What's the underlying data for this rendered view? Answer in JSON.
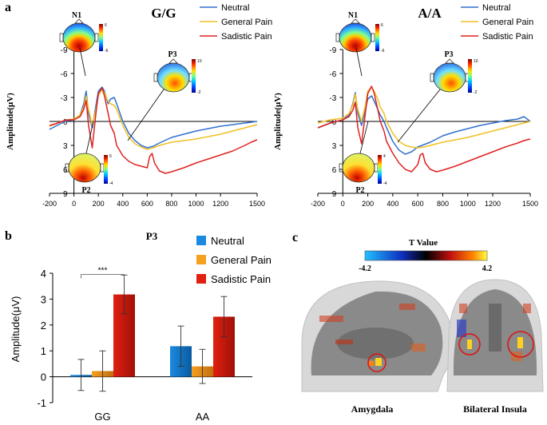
{
  "panels": {
    "a": "a",
    "b": "b",
    "c": "c"
  },
  "legend_a": {
    "neutral": "Neutral",
    "general": "General Pain",
    "sadistic": "Sadistic Pain"
  },
  "legend_b": {
    "neutral": "Neutral",
    "general": "General Pain",
    "sadistic": "Sadistic Pain"
  },
  "colors": {
    "neutral_line": "#3070d0",
    "general_line": "#f0c020",
    "sadistic_line": "#e02020",
    "bar_blue": "#1a8be0",
    "bar_orange": "#f6a020",
    "bar_red": "#e02010"
  },
  "topo_labels": {
    "n1": "N1",
    "p2": "P2",
    "p3": "P3",
    "n1_max": "6",
    "n1_min": "-6",
    "p2_max": "6",
    "p2_min": "-4",
    "p3_max": "10",
    "p3_min": "-2",
    "n1_max_aa": "6",
    "n1_min_aa": "-6",
    "p2_max_aa": "4",
    "p2_min_aa": "-4",
    "p3_max_aa": "10",
    "p3_min_aa": "-2"
  },
  "panel_c": {
    "colorbar_title": "T Value",
    "min_label": "-4.2",
    "max_label": "4.2",
    "left_caption": "Amygdala",
    "right_caption": "Bilateral Insula"
  },
  "chart_data": [
    {
      "id": "erp_gg",
      "type": "line",
      "title": "G/G",
      "xlabel": "",
      "ylabel": "Amplitude(μV)",
      "xlim": [
        -200,
        1500
      ],
      "ylim": [
        9,
        -9
      ],
      "xticks": [
        -200,
        0,
        200,
        400,
        600,
        800,
        1000,
        1200,
        1500
      ],
      "yticks": [
        -9,
        -6,
        -3,
        0,
        3,
        6,
        9
      ],
      "series": [
        {
          "name": "Neutral",
          "x": [
            -200,
            -150,
            -100,
            -50,
            0,
            50,
            80,
            100,
            120,
            150,
            180,
            200,
            230,
            250,
            280,
            300,
            330,
            350,
            400,
            450,
            500,
            550,
            600,
            650,
            700,
            800,
            900,
            1000,
            1100,
            1200,
            1300,
            1400,
            1450,
            1500
          ],
          "y": [
            1.0,
            0.6,
            0.2,
            -0.1,
            -0.2,
            -0.8,
            -2.2,
            -3.8,
            -1.0,
            0.8,
            -2.0,
            -3.8,
            -4.3,
            -3.8,
            -2.2,
            -2.8,
            -3.0,
            -2.2,
            0.0,
            1.5,
            2.4,
            3.0,
            3.3,
            3.1,
            2.7,
            2.0,
            1.6,
            1.2,
            0.9,
            0.6,
            0.4,
            0.2,
            0.1,
            0.0
          ]
        },
        {
          "name": "General Pain",
          "x": [
            -200,
            -150,
            -100,
            -50,
            0,
            50,
            80,
            100,
            120,
            150,
            180,
            200,
            230,
            250,
            280,
            300,
            330,
            350,
            400,
            450,
            500,
            550,
            600,
            650,
            700,
            800,
            900,
            1000,
            1100,
            1200,
            1300,
            1400,
            1450,
            1500
          ],
          "y": [
            0.6,
            0.3,
            0.0,
            -0.2,
            -0.3,
            -0.8,
            -1.8,
            -3.2,
            -1.5,
            0.5,
            -1.5,
            -3.2,
            -4.0,
            -3.6,
            -2.5,
            -2.2,
            -2.0,
            -1.5,
            0.5,
            2.0,
            2.8,
            3.2,
            3.5,
            3.3,
            3.0,
            2.6,
            2.4,
            2.2,
            1.9,
            1.6,
            1.2,
            0.8,
            0.6,
            0.4
          ]
        },
        {
          "name": "Sadistic Pain",
          "x": [
            -200,
            -150,
            -100,
            -50,
            0,
            50,
            80,
            100,
            120,
            150,
            180,
            200,
            230,
            250,
            280,
            300,
            330,
            350,
            400,
            450,
            500,
            550,
            600,
            620,
            640,
            660,
            700,
            750,
            800,
            900,
            1000,
            1100,
            1200,
            1300,
            1400,
            1450,
            1500
          ],
          "y": [
            0.5,
            0.3,
            0.0,
            -0.2,
            -0.2,
            -0.6,
            -1.5,
            -2.6,
            0.5,
            3.3,
            -1.0,
            -3.5,
            -4.2,
            -3.2,
            -1.0,
            0.5,
            1.5,
            3.0,
            4.3,
            5.0,
            5.4,
            5.6,
            5.8,
            4.4,
            4.0,
            5.2,
            6.2,
            6.5,
            6.3,
            5.8,
            5.2,
            4.7,
            4.2,
            3.7,
            3.0,
            2.6,
            2.3
          ]
        }
      ]
    },
    {
      "id": "erp_aa",
      "type": "line",
      "title": "A/A",
      "xlabel": "",
      "ylabel": "Amplitude(μV)",
      "xlim": [
        -200,
        1500
      ],
      "ylim": [
        9,
        -9
      ],
      "xticks": [
        -200,
        0,
        200,
        400,
        600,
        800,
        1000,
        1200,
        1500
      ],
      "yticks": [
        -9,
        -6,
        -3,
        0,
        3,
        6,
        9
      ],
      "series": [
        {
          "name": "Neutral",
          "x": [
            -200,
            -150,
            -100,
            -50,
            0,
            50,
            80,
            100,
            120,
            150,
            180,
            200,
            230,
            250,
            280,
            300,
            330,
            350,
            400,
            450,
            500,
            550,
            600,
            650,
            700,
            800,
            900,
            1000,
            1100,
            1200,
            1300,
            1400,
            1450,
            1500
          ],
          "y": [
            0.8,
            0.5,
            0.2,
            0.0,
            -0.2,
            -0.8,
            -2.2,
            -3.6,
            -1.0,
            0.5,
            -1.5,
            -2.8,
            -3.2,
            -2.6,
            -1.5,
            -0.8,
            0.0,
            0.8,
            2.5,
            3.6,
            4.1,
            3.8,
            3.2,
            2.9,
            2.6,
            1.8,
            1.3,
            0.9,
            0.5,
            0.2,
            -0.1,
            -0.3,
            -0.6,
            0.0
          ]
        },
        {
          "name": "General Pain",
          "x": [
            -200,
            -150,
            -100,
            -50,
            0,
            50,
            80,
            100,
            120,
            150,
            180,
            200,
            230,
            250,
            280,
            300,
            330,
            350,
            400,
            450,
            500,
            550,
            600,
            650,
            700,
            800,
            900,
            1000,
            1100,
            1200,
            1300,
            1400,
            1450,
            1500
          ],
          "y": [
            0.2,
            0.0,
            -0.2,
            -0.3,
            -0.4,
            -1.0,
            -2.0,
            -3.4,
            -1.5,
            0.0,
            -2.0,
            -3.8,
            -4.3,
            -3.8,
            -2.8,
            -1.8,
            -1.0,
            0.0,
            1.5,
            2.5,
            3.0,
            3.2,
            3.3,
            3.2,
            3.0,
            2.6,
            2.3,
            2.0,
            1.6,
            1.2,
            0.8,
            0.4,
            0.2,
            0.0
          ]
        },
        {
          "name": "Sadistic Pain",
          "x": [
            -200,
            -150,
            -100,
            -50,
            0,
            50,
            80,
            100,
            120,
            150,
            180,
            200,
            230,
            250,
            280,
            300,
            330,
            350,
            400,
            450,
            500,
            550,
            600,
            620,
            640,
            660,
            700,
            750,
            800,
            900,
            1000,
            1100,
            1200,
            1300,
            1400,
            1450,
            1500
          ],
          "y": [
            0.8,
            0.5,
            0.2,
            0.0,
            -0.2,
            -0.6,
            -1.4,
            -2.4,
            0.8,
            2.8,
            -1.0,
            -3.5,
            -4.4,
            -3.6,
            -1.5,
            0.0,
            1.2,
            2.5,
            4.0,
            5.2,
            6.0,
            6.3,
            5.4,
            4.2,
            4.0,
            5.2,
            6.0,
            6.3,
            6.1,
            5.6,
            5.0,
            4.4,
            3.8,
            3.2,
            2.7,
            2.4,
            2.2
          ]
        }
      ]
    },
    {
      "id": "p3_bars",
      "type": "bar",
      "title": "P3",
      "xlabel": "",
      "ylabel": "Amplitude(μV)",
      "ylim": [
        -1,
        4
      ],
      "yticks": [
        -1,
        0,
        1,
        2,
        3,
        4
      ],
      "categories": [
        "GG",
        "AA"
      ],
      "series": [
        {
          "name": "Neutral",
          "values": [
            0.07,
            1.18
          ],
          "errors": [
            0.6,
            0.78
          ]
        },
        {
          "name": "General Pain",
          "values": [
            0.22,
            0.4
          ],
          "errors": [
            0.78,
            0.66
          ]
        },
        {
          "name": "Sadistic Pain",
          "values": [
            3.18,
            2.32
          ],
          "errors": [
            0.75,
            0.78
          ]
        }
      ],
      "annotation": "***"
    }
  ]
}
